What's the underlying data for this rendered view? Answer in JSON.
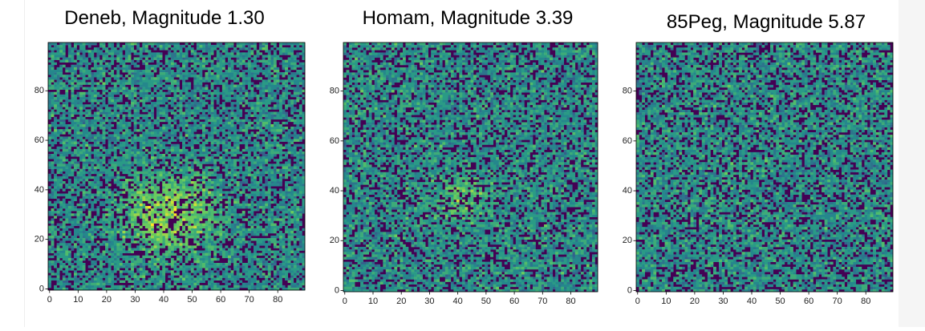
{
  "chart_data": [
    {
      "type": "image",
      "title": "Deneb, Magnitude 1.30",
      "colormap": "viridis",
      "xlim": [
        -0.5,
        89.5
      ],
      "ylim": [
        -0.5,
        99.5
      ],
      "xticks": [
        0,
        10,
        20,
        30,
        40,
        50,
        60,
        70,
        80
      ],
      "yticks": [
        0,
        20,
        40,
        60,
        80
      ]
    },
    {
      "type": "image",
      "title": "Homam, Magnitude 3.39",
      "colormap": "viridis",
      "xlim": [
        -0.5,
        89.5
      ],
      "ylim": [
        -0.5,
        99.5
      ],
      "xticks": [
        0,
        10,
        20,
        30,
        40,
        50,
        60,
        70,
        80
      ],
      "yticks": [
        0,
        20,
        40,
        60,
        80
      ]
    },
    {
      "type": "image",
      "title": "85Peg, Magnitude 5.87",
      "colormap": "viridis",
      "xlim": [
        -0.5,
        89.5
      ],
      "ylim": [
        -0.5,
        99.5
      ],
      "xticks": [
        0,
        10,
        20,
        30,
        40,
        50,
        60,
        70,
        80
      ],
      "yticks": [
        0,
        20,
        40,
        60,
        80
      ]
    }
  ]
}
